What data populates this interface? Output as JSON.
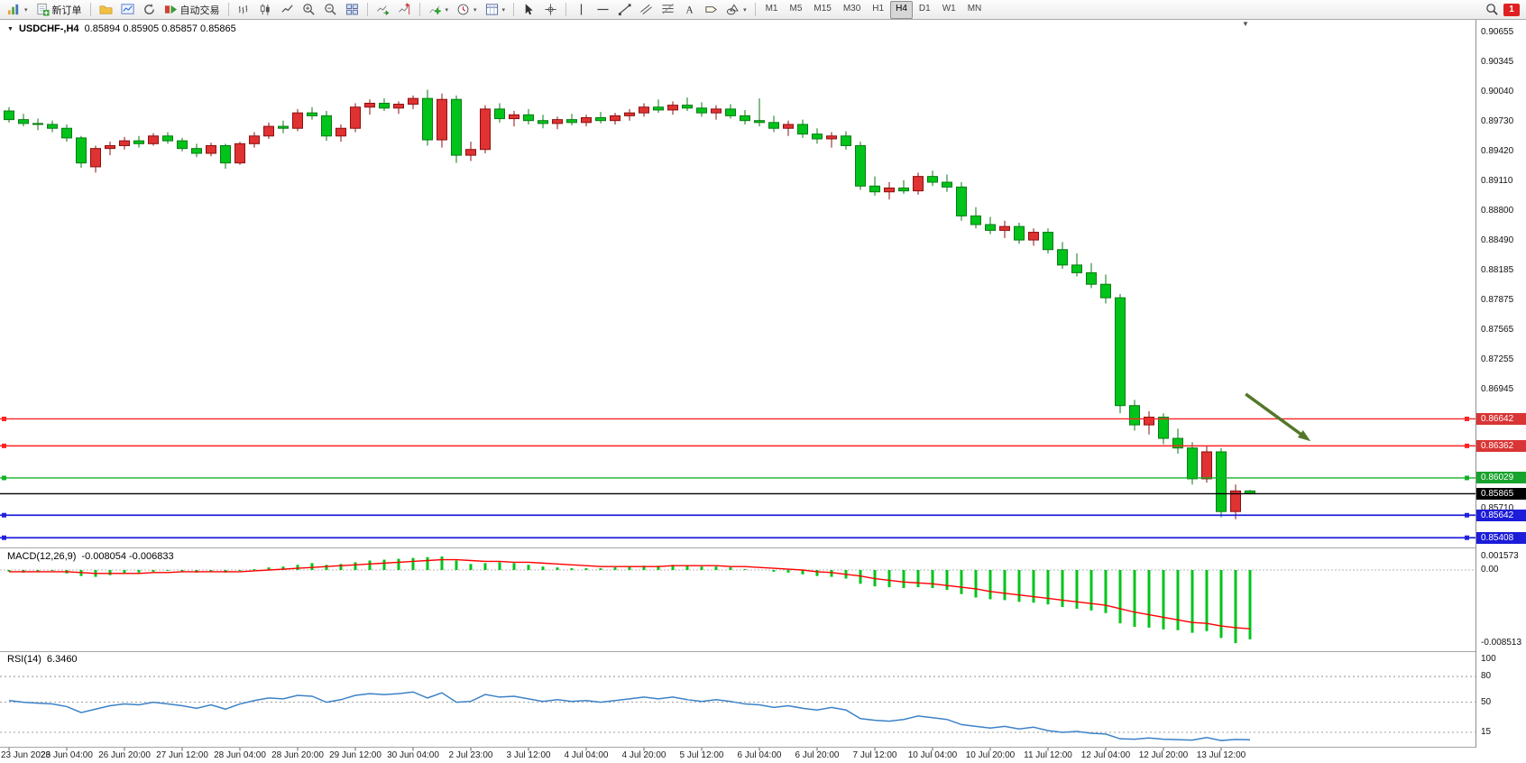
{
  "toolbar": {
    "new_order_label": "新订单",
    "algo_trading_label": "自动交易",
    "timeframes": [
      "M1",
      "M5",
      "M15",
      "M30",
      "H1",
      "H4",
      "D1",
      "W1",
      "MN"
    ],
    "active_timeframe": "H4",
    "notification_count": "1"
  },
  "chart_header": {
    "symbol_period": "USDCHF-,H4",
    "ohlc": "0.85894 0.85905 0.85857 0.85865"
  },
  "price_scale": {
    "labels": [
      "0.90655",
      "0.90345",
      "0.90040",
      "0.89730",
      "0.89420",
      "0.89110",
      "0.88800",
      "0.88490",
      "0.88185",
      "0.87875",
      "0.87565",
      "0.87255",
      "0.86945",
      "0.85710"
    ],
    "tags": [
      {
        "value": "0.86642",
        "bg": "#d93535",
        "type": "resistance-1"
      },
      {
        "value": "0.86362",
        "bg": "#d93535",
        "type": "resistance-2"
      },
      {
        "value": "0.86029",
        "bg": "#18a32c",
        "type": "support-1"
      },
      {
        "value": "0.85865",
        "bg": "#000000",
        "type": "bid"
      },
      {
        "value": "0.85642",
        "bg": "#1c1cd9",
        "type": "support-2"
      },
      {
        "value": "0.85408",
        "bg": "#1c1cd9",
        "type": "support-3"
      }
    ]
  },
  "macd_panel": {
    "label": "MACD(12,26,9)",
    "values": "-0.008054 -0.006833",
    "scale_labels": [
      "0.001573",
      "0.00",
      "-0.008513"
    ]
  },
  "rsi_panel": {
    "label": "RSI(14)",
    "value": "6.3460",
    "scale_labels": [
      "100",
      "80",
      "50",
      "15"
    ]
  },
  "theme": {
    "up_color": "#e03232",
    "up_dark": "#8b1010",
    "down_color": "#00c41a",
    "down_dark": "#0a7a14",
    "macd_bar": "#00c41a",
    "macd_signal": "#ff0000",
    "rsi_line": "#3c82c8",
    "background": "#ffffff"
  },
  "chart_data": {
    "type": "candlestick",
    "symbol": "USDCHF-",
    "timeframe": "H4",
    "title": "USDCHF-,H4",
    "ylim": [
      0.854,
      0.9066
    ],
    "x_label_step": 4,
    "x_labels": [
      "23 Jun 2023",
      "26 Jun 04:00",
      "26 Jun 20:00",
      "27 Jun 12:00",
      "28 Jun 04:00",
      "28 Jun 20:00",
      "29 Jun 12:00",
      "30 Jun 04:00",
      "2 Jul 23:00",
      "3 Jul 12:00",
      "4 Jul 04:00",
      "4 Jul 20:00",
      "5 Jul 12:00",
      "6 Jul 04:00",
      "6 Jul 20:00",
      "7 Jul 12:00",
      "10 Jul 04:00",
      "10 Jul 20:00",
      "11 Jul 12:00",
      "12 Jul 04:00",
      "12 Jul 20:00",
      "13 Jul 12:00"
    ],
    "candles": [
      [
        0.8984,
        0.8988,
        0.8972,
        0.8975
      ],
      [
        0.8975,
        0.8981,
        0.8968,
        0.8971
      ],
      [
        0.8971,
        0.8976,
        0.8964,
        0.897
      ],
      [
        0.897,
        0.8974,
        0.8962,
        0.8966
      ],
      [
        0.8966,
        0.897,
        0.8952,
        0.8956
      ],
      [
        0.8956,
        0.8958,
        0.8925,
        0.893
      ],
      [
        0.8926,
        0.8948,
        0.892,
        0.8945
      ],
      [
        0.8945,
        0.8952,
        0.8938,
        0.8948
      ],
      [
        0.8948,
        0.8957,
        0.8944,
        0.8953
      ],
      [
        0.8953,
        0.8958,
        0.8946,
        0.895
      ],
      [
        0.895,
        0.8961,
        0.8948,
        0.8958
      ],
      [
        0.8958,
        0.8962,
        0.895,
        0.8953
      ],
      [
        0.8953,
        0.8956,
        0.8942,
        0.8945
      ],
      [
        0.8945,
        0.895,
        0.8936,
        0.894
      ],
      [
        0.894,
        0.8951,
        0.8937,
        0.8948
      ],
      [
        0.8948,
        0.895,
        0.8924,
        0.893
      ],
      [
        0.893,
        0.8952,
        0.8928,
        0.895
      ],
      [
        0.895,
        0.8962,
        0.8946,
        0.8958
      ],
      [
        0.8958,
        0.8972,
        0.8955,
        0.8968
      ],
      [
        0.8968,
        0.8974,
        0.8961,
        0.8966
      ],
      [
        0.8966,
        0.8986,
        0.8963,
        0.8982
      ],
      [
        0.8982,
        0.8988,
        0.8975,
        0.8979
      ],
      [
        0.8979,
        0.8984,
        0.8953,
        0.8958
      ],
      [
        0.8958,
        0.897,
        0.8952,
        0.8966
      ],
      [
        0.8966,
        0.8992,
        0.8962,
        0.8988
      ],
      [
        0.8988,
        0.8996,
        0.898,
        0.8992
      ],
      [
        0.8992,
        0.8997,
        0.8984,
        0.8987
      ],
      [
        0.8987,
        0.8994,
        0.8981,
        0.8991
      ],
      [
        0.8991,
        0.9,
        0.8986,
        0.8997
      ],
      [
        0.8997,
        0.9006,
        0.8948,
        0.8954
      ],
      [
        0.8954,
        0.9002,
        0.8946,
        0.8996
      ],
      [
        0.8996,
        0.9,
        0.893,
        0.8938
      ],
      [
        0.8938,
        0.8952,
        0.8932,
        0.8944
      ],
      [
        0.8944,
        0.899,
        0.894,
        0.8986
      ],
      [
        0.8986,
        0.8992,
        0.8972,
        0.8976
      ],
      [
        0.8976,
        0.8984,
        0.8968,
        0.898
      ],
      [
        0.898,
        0.8986,
        0.897,
        0.8974
      ],
      [
        0.8974,
        0.898,
        0.8966,
        0.8971
      ],
      [
        0.8971,
        0.8978,
        0.8965,
        0.8975
      ],
      [
        0.8975,
        0.8981,
        0.8969,
        0.8972
      ],
      [
        0.8972,
        0.898,
        0.8968,
        0.8977
      ],
      [
        0.8977,
        0.8983,
        0.8971,
        0.8974
      ],
      [
        0.8974,
        0.8982,
        0.897,
        0.8979
      ],
      [
        0.8979,
        0.8986,
        0.8974,
        0.8982
      ],
      [
        0.8982,
        0.8992,
        0.8978,
        0.8988
      ],
      [
        0.8988,
        0.8996,
        0.8982,
        0.8985
      ],
      [
        0.8985,
        0.8994,
        0.898,
        0.899
      ],
      [
        0.899,
        0.8998,
        0.8984,
        0.8987
      ],
      [
        0.8987,
        0.8993,
        0.8978,
        0.8982
      ],
      [
        0.8982,
        0.899,
        0.8975,
        0.8986
      ],
      [
        0.8986,
        0.8991,
        0.8976,
        0.8979
      ],
      [
        0.8979,
        0.8985,
        0.897,
        0.8974
      ],
      [
        0.8974,
        0.8997,
        0.8968,
        0.8972
      ],
      [
        0.8972,
        0.8979,
        0.8962,
        0.8966
      ],
      [
        0.8966,
        0.8974,
        0.8958,
        0.897
      ],
      [
        0.897,
        0.8975,
        0.8956,
        0.896
      ],
      [
        0.896,
        0.8966,
        0.895,
        0.8955
      ],
      [
        0.8955,
        0.8962,
        0.8946,
        0.8958
      ],
      [
        0.8958,
        0.8963,
        0.8944,
        0.8948
      ],
      [
        0.8948,
        0.8952,
        0.8902,
        0.8906
      ],
      [
        0.8906,
        0.8916,
        0.8896,
        0.89
      ],
      [
        0.89,
        0.891,
        0.8892,
        0.8904
      ],
      [
        0.8904,
        0.8912,
        0.8898,
        0.8901
      ],
      [
        0.8901,
        0.892,
        0.8897,
        0.8916
      ],
      [
        0.8916,
        0.8922,
        0.8906,
        0.891
      ],
      [
        0.891,
        0.8918,
        0.89,
        0.8905
      ],
      [
        0.8905,
        0.891,
        0.887,
        0.8875
      ],
      [
        0.8875,
        0.8884,
        0.8862,
        0.8866
      ],
      [
        0.8866,
        0.8874,
        0.8856,
        0.886
      ],
      [
        0.886,
        0.887,
        0.8852,
        0.8864
      ],
      [
        0.8864,
        0.8868,
        0.8846,
        0.885
      ],
      [
        0.885,
        0.8862,
        0.8844,
        0.8858
      ],
      [
        0.8858,
        0.8862,
        0.8836,
        0.884
      ],
      [
        0.884,
        0.8848,
        0.882,
        0.8824
      ],
      [
        0.8824,
        0.8836,
        0.8812,
        0.8816
      ],
      [
        0.8816,
        0.8826,
        0.88,
        0.8804
      ],
      [
        0.8804,
        0.8814,
        0.8784,
        0.879
      ],
      [
        0.879,
        0.8794,
        0.867,
        0.8678
      ],
      [
        0.8678,
        0.8684,
        0.8652,
        0.8658
      ],
      [
        0.8658,
        0.8672,
        0.8648,
        0.8666
      ],
      [
        0.8666,
        0.867,
        0.8638,
        0.8644
      ],
      [
        0.8644,
        0.8654,
        0.8628,
        0.8634
      ],
      [
        0.8634,
        0.864,
        0.8596,
        0.8602
      ],
      [
        0.8602,
        0.8636,
        0.8598,
        0.863
      ],
      [
        0.863,
        0.8634,
        0.8562,
        0.8568
      ],
      [
        0.8568,
        0.8596,
        0.856,
        0.85894
      ],
      [
        0.85894,
        0.85905,
        0.85857,
        0.85865
      ]
    ],
    "price_lines": [
      {
        "price": 0.86642,
        "color": "#ff2222",
        "width": 1.4,
        "handles": true
      },
      {
        "price": 0.86362,
        "color": "#ff2222",
        "width": 1.4,
        "handles": true
      },
      {
        "price": 0.86029,
        "color": "#12b228",
        "width": 1.4,
        "handles": true
      },
      {
        "price": 0.85865,
        "color": "#000000",
        "width": 1.4,
        "handles": false
      },
      {
        "price": 0.85642,
        "color": "#2020dd",
        "width": 1.8,
        "handles": true
      },
      {
        "price": 0.85408,
        "color": "#2020dd",
        "width": 1.8,
        "handles": true
      }
    ],
    "indicators": {
      "macd": {
        "params": [
          12,
          26,
          9
        ],
        "current": "-0.008054 -0.006833",
        "range": [
          -0.008513,
          0.001573
        ],
        "histogram": [
          -0.0002,
          -0.0003,
          -0.0002,
          -0.0001,
          -0.0004,
          -0.0007,
          -0.0008,
          -0.0006,
          -0.0004,
          -0.0003,
          -0.0002,
          -0.0001,
          -0.0002,
          -0.0003,
          -0.0002,
          -0.0003,
          -0.0001,
          0.0001,
          0.0003,
          0.0004,
          0.0006,
          0.0008,
          0.0006,
          0.0007,
          0.0009,
          0.0011,
          0.0012,
          0.0013,
          0.0014,
          0.0015,
          0.00157,
          0.0011,
          0.0007,
          0.0008,
          0.0009,
          0.0008,
          0.0006,
          0.0004,
          0.0003,
          0.0002,
          0.0002,
          0.0002,
          0.0003,
          0.0004,
          0.0005,
          0.0005,
          0.0006,
          0.0005,
          0.0004,
          0.0004,
          0.0003,
          0.0001,
          0,
          -0.0002,
          -0.0003,
          -0.0005,
          -0.0007,
          -0.0008,
          -0.001,
          -0.0016,
          -0.0019,
          -0.002,
          -0.0021,
          -0.002,
          -0.0021,
          -0.0023,
          -0.0028,
          -0.0032,
          -0.0034,
          -0.0035,
          -0.0037,
          -0.0038,
          -0.004,
          -0.0043,
          -0.0045,
          -0.0047,
          -0.005,
          -0.0062,
          -0.0066,
          -0.0067,
          -0.0069,
          -0.007,
          -0.0073,
          -0.0071,
          -0.0079,
          -0.0085,
          -0.008054
        ],
        "signal": [
          -0.0002,
          -0.0002,
          -0.0002,
          -0.0002,
          -0.0002,
          -0.0003,
          -0.0004,
          -0.0004,
          -0.0004,
          -0.0004,
          -0.0003,
          -0.0003,
          -0.0002,
          -0.0002,
          -0.0002,
          -0.0002,
          -0.0002,
          -0.0001,
          0,
          0.0001,
          0.0002,
          0.0003,
          0.0004,
          0.0005,
          0.0006,
          0.0007,
          0.0008,
          0.0009,
          0.001,
          0.0011,
          0.0012,
          0.0012,
          0.0011,
          0.001,
          0.001,
          0.0009,
          0.0009,
          0.0008,
          0.0007,
          0.0006,
          0.0005,
          0.0004,
          0.0004,
          0.0004,
          0.0004,
          0.0004,
          0.0005,
          0.0005,
          0.0005,
          0.0005,
          0.0004,
          0.0004,
          0.0003,
          0.0002,
          0.0001,
          0,
          -0.0002,
          -0.0003,
          -0.0005,
          -0.0007,
          -0.001,
          -0.0012,
          -0.0014,
          -0.0015,
          -0.0016,
          -0.0018,
          -0.002,
          -0.0022,
          -0.0025,
          -0.0027,
          -0.0029,
          -0.0031,
          -0.0033,
          -0.0035,
          -0.0037,
          -0.0039,
          -0.0041,
          -0.0045,
          -0.0049,
          -0.0052,
          -0.0055,
          -0.0058,
          -0.0061,
          -0.0062,
          -0.0065,
          -0.0067,
          -0.006833
        ]
      },
      "rsi": {
        "period": 14,
        "current": 6.346,
        "levels": [
          100,
          80,
          50,
          15
        ],
        "values": [
          52,
          50,
          49,
          48,
          45,
          38,
          42,
          46,
          48,
          47,
          50,
          48,
          46,
          43,
          47,
          42,
          48,
          52,
          55,
          54,
          58,
          57,
          50,
          53,
          58,
          60,
          59,
          60,
          62,
          55,
          61,
          50,
          51,
          59,
          56,
          57,
          54,
          51,
          53,
          51,
          52,
          50,
          52,
          54,
          56,
          54,
          56,
          53,
          51,
          53,
          51,
          48,
          47,
          44,
          46,
          43,
          41,
          44,
          41,
          31,
          29,
          28,
          30,
          34,
          32,
          30,
          24,
          22,
          20,
          22,
          19,
          21,
          17,
          15,
          16,
          14,
          13,
          7.5,
          7,
          8.5,
          7,
          6.5,
          6,
          9,
          5.5,
          6.8,
          6.346
        ]
      }
    },
    "annotations": [
      {
        "type": "arrow",
        "color": "#53772a",
        "from": {
          "bar": 85.7,
          "price": 0.869
        },
        "to": {
          "bar": 90.2,
          "price": 0.8641
        }
      }
    ]
  }
}
